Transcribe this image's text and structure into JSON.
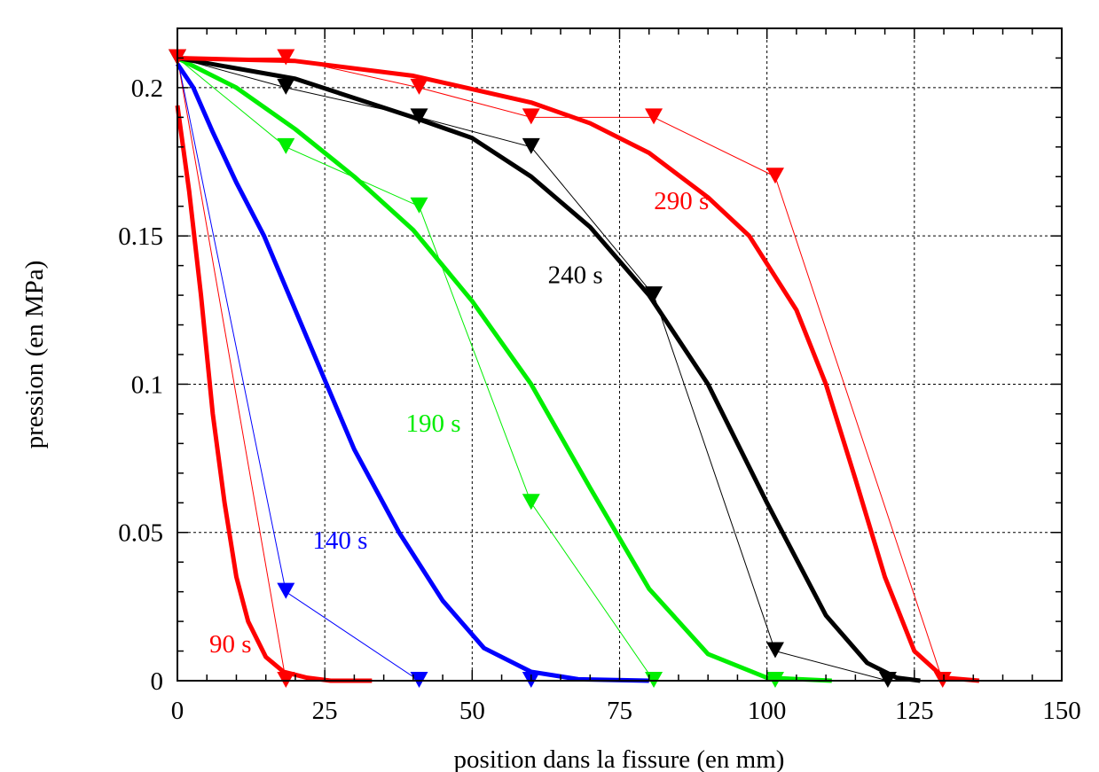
{
  "chart_data": {
    "type": "line",
    "title": "",
    "xlabel": "position dans la fissure (en mm)",
    "ylabel": "pression (en MPa)",
    "xlim": [
      0,
      150
    ],
    "ylim": [
      0,
      0.22
    ],
    "xticks": [
      "0",
      "25",
      "50",
      "75",
      "100",
      "125",
      "150"
    ],
    "xtick_values": [
      0,
      25,
      50,
      75,
      100,
      125,
      150
    ],
    "yticks": [
      "0",
      "0.05",
      "0.1",
      "0.15",
      "0.2"
    ],
    "ytick_values": [
      0,
      0.05,
      0.1,
      0.15,
      0.2
    ],
    "grid": true,
    "series": [
      {
        "name": "90 s",
        "color": "#ff0000",
        "curve": [
          [
            0,
            0.194
          ],
          [
            2,
            0.165
          ],
          [
            4,
            0.13
          ],
          [
            6,
            0.09
          ],
          [
            8,
            0.06
          ],
          [
            10,
            0.035
          ],
          [
            12,
            0.02
          ],
          [
            15,
            0.008
          ],
          [
            18,
            0.003
          ],
          [
            22,
            0.001
          ],
          [
            26,
            0
          ],
          [
            33,
            0
          ]
        ],
        "markers": [
          [
            0,
            0.21
          ],
          [
            18.4,
            0
          ]
        ]
      },
      {
        "name": "140 s",
        "color": "#0000ff",
        "curve": [
          [
            0,
            0.208
          ],
          [
            2.7,
            0.2
          ],
          [
            6,
            0.185
          ],
          [
            10,
            0.168
          ],
          [
            14.7,
            0.15
          ],
          [
            20,
            0.125
          ],
          [
            25.3,
            0.1
          ],
          [
            30,
            0.078
          ],
          [
            37.6,
            0.05
          ],
          [
            45,
            0.027
          ],
          [
            52,
            0.011
          ],
          [
            60,
            0.003
          ],
          [
            68,
            0.0005
          ],
          [
            80,
            0
          ]
        ],
        "markers": [
          [
            0,
            0.21
          ],
          [
            18.4,
            0.03
          ],
          [
            41,
            0
          ],
          [
            60,
            0
          ]
        ]
      },
      {
        "name": "190 s",
        "color": "#00ee00",
        "curve": [
          [
            0,
            0.21
          ],
          [
            10,
            0.2
          ],
          [
            20,
            0.186
          ],
          [
            30,
            0.17
          ],
          [
            40,
            0.152
          ],
          [
            50,
            0.128
          ],
          [
            60,
            0.1
          ],
          [
            70,
            0.065
          ],
          [
            80,
            0.031
          ],
          [
            90,
            0.009
          ],
          [
            100,
            0.001
          ],
          [
            111,
            0
          ]
        ],
        "markers": [
          [
            0,
            0.21
          ],
          [
            18.4,
            0.18
          ],
          [
            41,
            0.16
          ],
          [
            60,
            0.06
          ],
          [
            80.8,
            0
          ],
          [
            101.4,
            0
          ]
        ]
      },
      {
        "name": "240 s",
        "color": "#000000",
        "curve": [
          [
            0,
            0.21
          ],
          [
            20,
            0.203
          ],
          [
            40,
            0.19
          ],
          [
            50,
            0.183
          ],
          [
            60,
            0.17
          ],
          [
            70,
            0.153
          ],
          [
            80,
            0.13
          ],
          [
            90,
            0.1
          ],
          [
            100,
            0.06
          ],
          [
            110,
            0.022
          ],
          [
            117,
            0.006
          ],
          [
            122,
            0.001
          ],
          [
            126,
            0
          ]
        ],
        "markers": [
          [
            0,
            0.21
          ],
          [
            18.4,
            0.2
          ],
          [
            41,
            0.19
          ],
          [
            60,
            0.18
          ],
          [
            80.8,
            0.13
          ],
          [
            101.4,
            0.01
          ],
          [
            120.5,
            0
          ]
        ]
      },
      {
        "name": "290 s",
        "color": "#ff0000",
        "curve": [
          [
            0,
            0.21
          ],
          [
            20,
            0.209
          ],
          [
            40,
            0.204
          ],
          [
            60,
            0.195
          ],
          [
            70,
            0.188
          ],
          [
            80,
            0.178
          ],
          [
            90,
            0.163
          ],
          [
            97,
            0.15
          ],
          [
            105,
            0.125
          ],
          [
            110,
            0.1
          ],
          [
            115,
            0.068
          ],
          [
            120,
            0.035
          ],
          [
            125,
            0.01
          ],
          [
            130,
            0.001
          ],
          [
            136,
            0
          ]
        ],
        "markers": [
          [
            0,
            0.21
          ],
          [
            18.4,
            0.21
          ],
          [
            41,
            0.2
          ],
          [
            60,
            0.19
          ],
          [
            80.8,
            0.19
          ],
          [
            101.4,
            0.17
          ],
          [
            129.8,
            0
          ]
        ]
      }
    ],
    "annotations": [
      {
        "text": "90 s",
        "x": 9,
        "y": 0.0095,
        "color": "#ff0000"
      },
      {
        "text": "140 s",
        "x": 27.6,
        "y": 0.0445,
        "color": "#0000ff"
      },
      {
        "text": "190 s",
        "x": 43.4,
        "y": 0.084,
        "color": "#00ee00"
      },
      {
        "text": "240 s",
        "x": 67.5,
        "y": 0.134,
        "color": "#000000"
      },
      {
        "text": "290 s",
        "x": 85.5,
        "y": 0.159,
        "color": "#ff0000"
      }
    ]
  }
}
